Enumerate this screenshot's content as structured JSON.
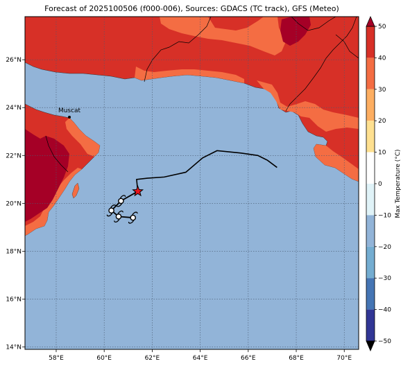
{
  "title": "Forecast of 2025100506 (f000-006), Sources: GDACS (TC track), GFS (Meteo)",
  "map": {
    "lon_range": [
      56.7,
      70.6
    ],
    "lat_range": [
      13.9,
      27.8
    ],
    "lon_ticks": [
      58,
      60,
      62,
      64,
      66,
      68,
      70
    ],
    "lon_tick_labels": [
      "58°E",
      "60°E",
      "62°E",
      "64°E",
      "66°E",
      "68°E",
      "70°E"
    ],
    "lat_ticks": [
      14,
      16,
      18,
      20,
      22,
      24,
      26
    ],
    "lat_tick_labels": [
      "14°N",
      "16°N",
      "18°N",
      "20°N",
      "22°N",
      "24°N",
      "26°N"
    ],
    "grid": true,
    "ocean_color": "#92b4d8"
  },
  "city": {
    "name": "Muscat",
    "lon": 58.55,
    "lat": 23.6
  },
  "track": [
    {
      "lon": 67.2,
      "lat": 21.5
    },
    {
      "lon": 66.8,
      "lat": 21.8
    },
    {
      "lon": 66.4,
      "lat": 22.0
    },
    {
      "lon": 65.7,
      "lat": 22.1
    },
    {
      "lon": 64.7,
      "lat": 22.2
    },
    {
      "lon": 64.1,
      "lat": 21.9
    },
    {
      "lon": 63.4,
      "lat": 21.3
    },
    {
      "lon": 62.5,
      "lat": 21.1
    },
    {
      "lon": 61.8,
      "lat": 21.05
    },
    {
      "lon": 61.35,
      "lat": 21.0
    },
    {
      "lon": 61.4,
      "lat": 20.5
    }
  ],
  "storm_position": {
    "lon": 61.4,
    "lat": 20.5
  },
  "forecast_points": [
    {
      "lon": 60.7,
      "lat": 20.1
    },
    {
      "lon": 60.3,
      "lat": 19.7
    },
    {
      "lon": 60.6,
      "lat": 19.45
    },
    {
      "lon": 61.2,
      "lat": 19.4
    }
  ],
  "colorbar": {
    "label": "Max Temperature (°C)",
    "ticks": [
      50,
      40,
      30,
      20,
      10,
      0,
      -10,
      -20,
      -30,
      -40,
      -50
    ],
    "tick_labels": [
      "50",
      "40",
      "30",
      "20",
      "10",
      "0",
      "−10",
      "−20",
      "−30",
      "−40",
      "−50"
    ],
    "colors": [
      "#a50026",
      "#d73027",
      "#f46d43",
      "#fdae61",
      "#fee090",
      "#ffffff",
      "#e0f3f8",
      "#92b4d8",
      "#74add1",
      "#4575b4",
      "#313695",
      "#1d1d80"
    ]
  }
}
